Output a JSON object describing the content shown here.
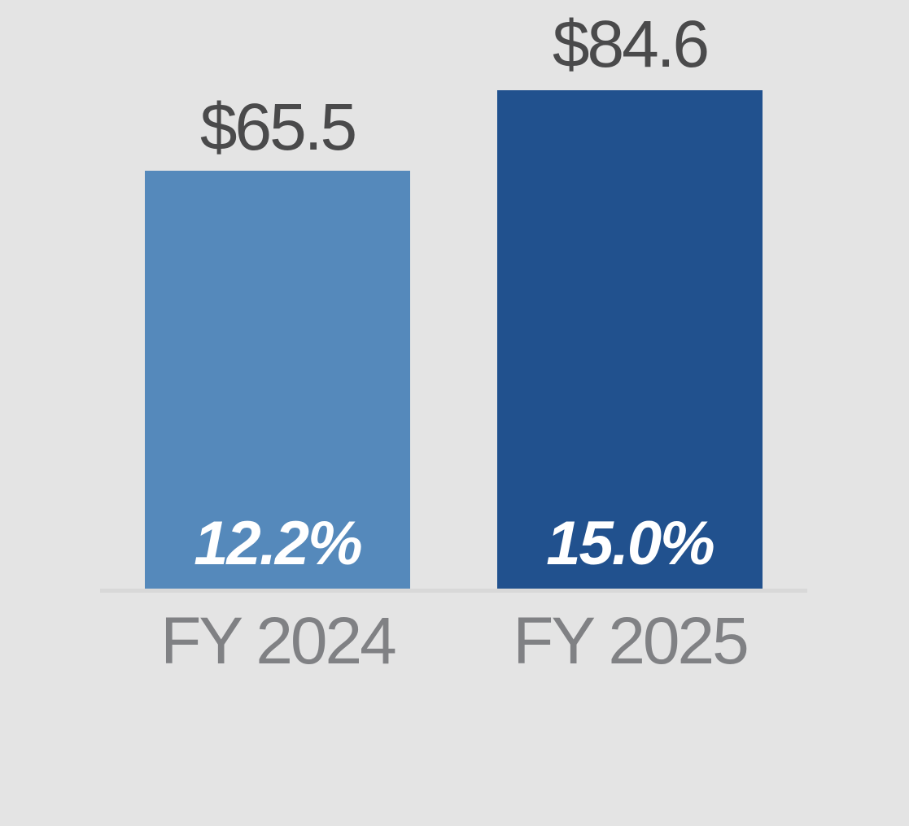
{
  "chart_data": {
    "type": "bar",
    "categories": [
      "FY 2024",
      "FY 2025"
    ],
    "values": [
      65.5,
      84.6
    ],
    "title": "",
    "xlabel": "",
    "ylabel": "",
    "legend": false,
    "gridlines": false,
    "bars": [
      {
        "category": "FY 2024",
        "value": 65.5,
        "value_label": "$65.5",
        "inner_label": "12.2%",
        "color": "#5589bb"
      },
      {
        "category": "FY 2025",
        "value": 84.6,
        "value_label": "$84.6",
        "inner_label": "15.0%",
        "color": "#21518e"
      }
    ],
    "colors": {
      "bar_fy2024": "#5589bb",
      "bar_fy2025": "#21518e",
      "value_label_text": "#4a4a4b",
      "axis_label_text": "#808184",
      "inner_label_text": "#ffffff",
      "baseline": "#d8d8d8",
      "background": "#e4e4e4"
    }
  }
}
